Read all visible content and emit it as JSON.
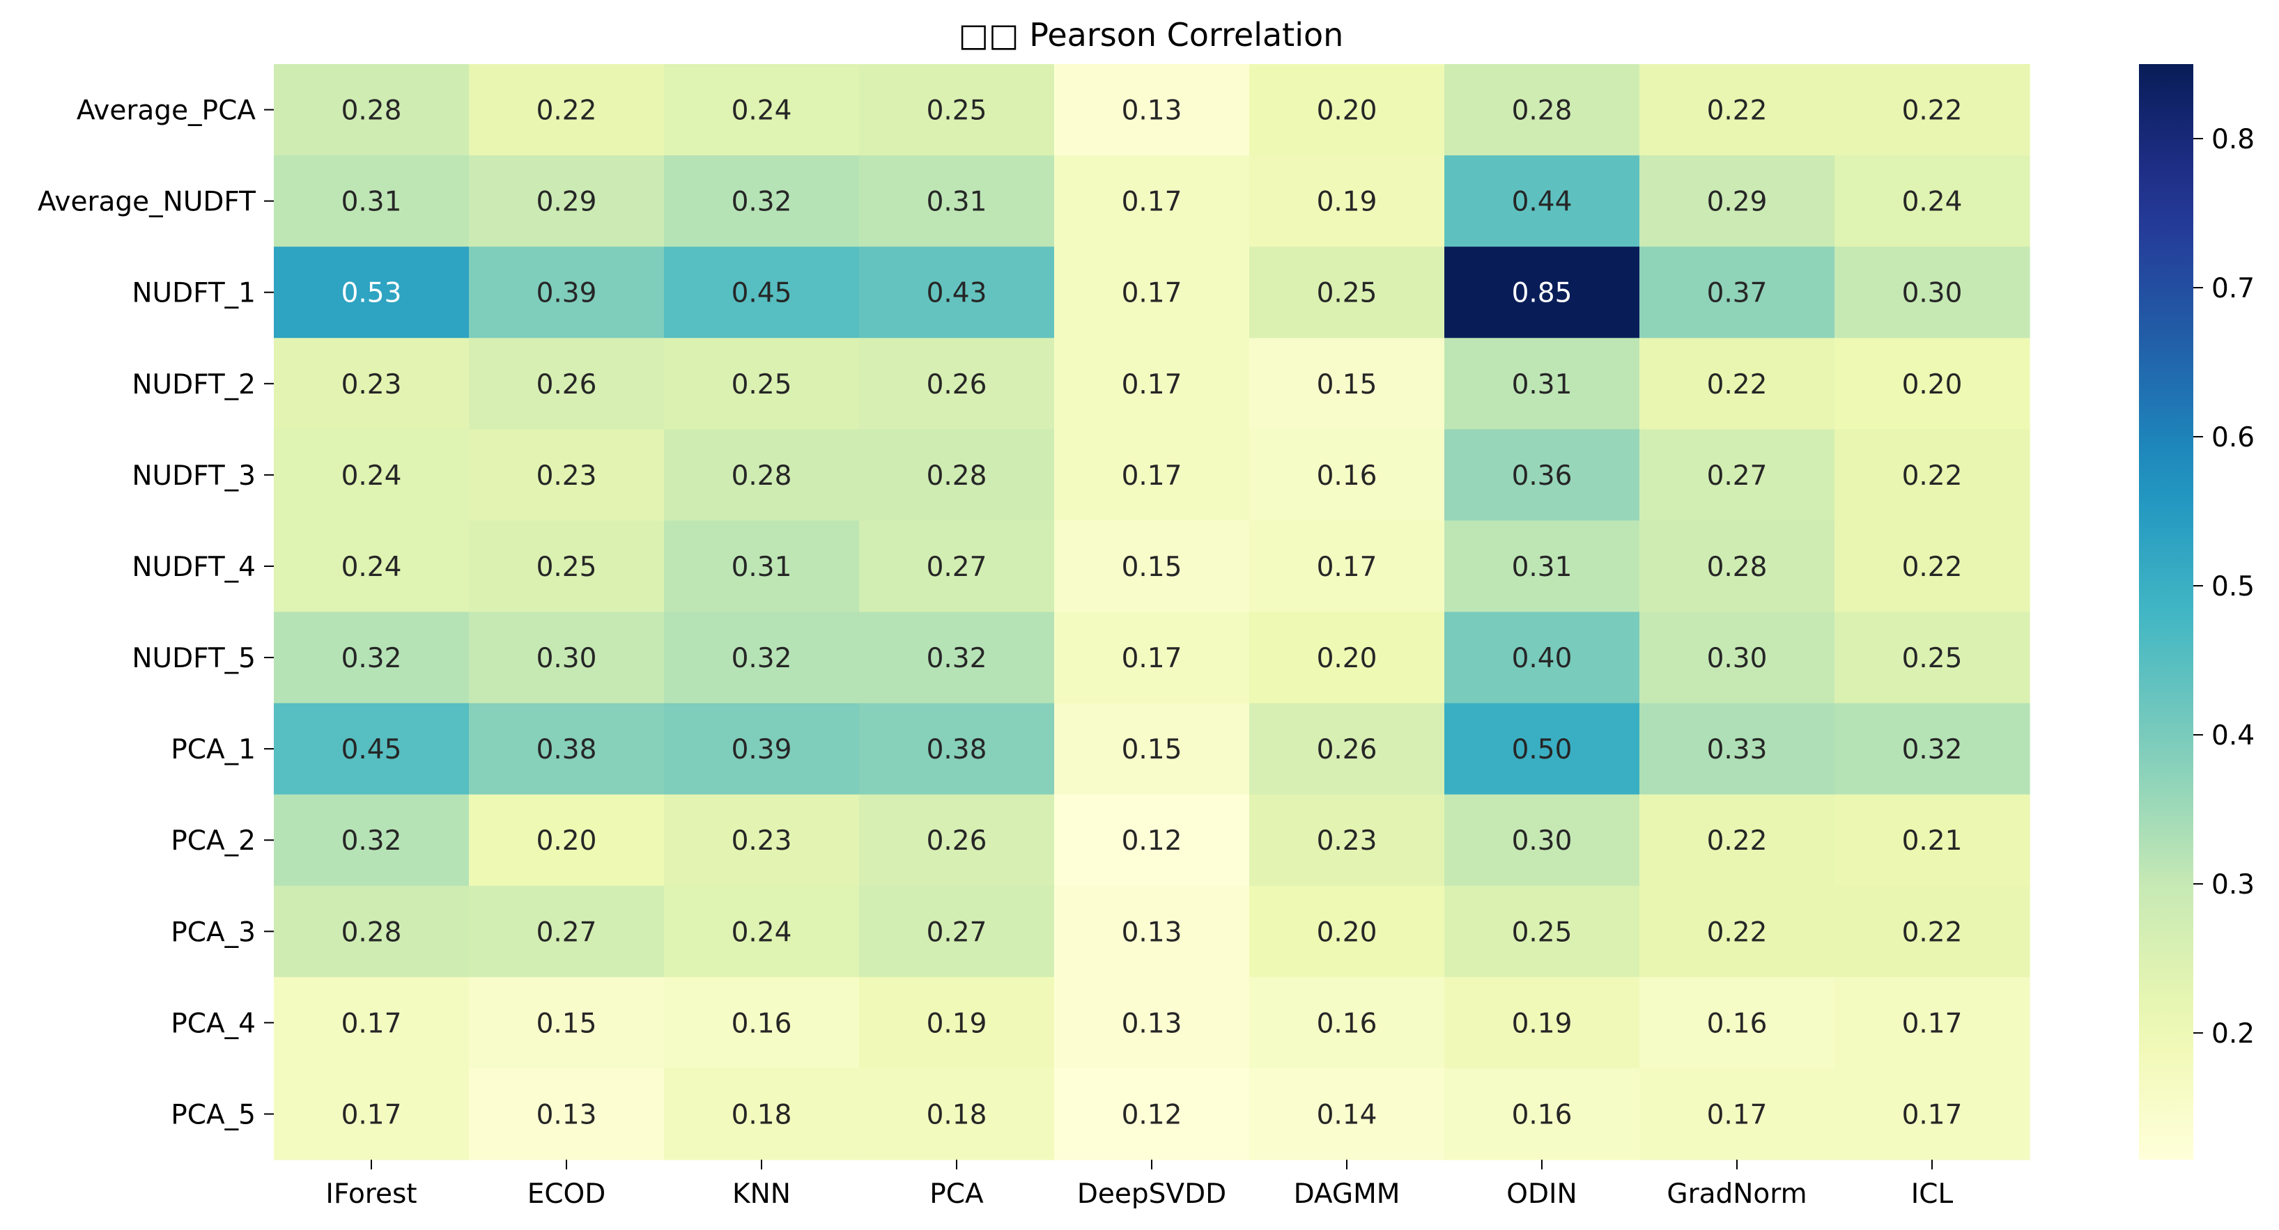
{
  "chart_data": {
    "type": "heatmap",
    "title": "□□ Pearson Correlation",
    "columns": [
      "IForest",
      "ECOD",
      "KNN",
      "PCA",
      "DeepSVDD",
      "DAGMM",
      "ODIN",
      "GradNorm",
      "ICL"
    ],
    "rows": [
      "Average_PCA",
      "Average_NUDFT",
      "NUDFT_1",
      "NUDFT_2",
      "NUDFT_3",
      "NUDFT_4",
      "NUDFT_5",
      "PCA_1",
      "PCA_2",
      "PCA_3",
      "PCA_4",
      "PCA_5"
    ],
    "values": [
      [
        0.28,
        0.22,
        0.24,
        0.25,
        0.13,
        0.2,
        0.28,
        0.22,
        0.22
      ],
      [
        0.31,
        0.29,
        0.32,
        0.31,
        0.17,
        0.19,
        0.44,
        0.29,
        0.24
      ],
      [
        0.53,
        0.39,
        0.45,
        0.43,
        0.17,
        0.25,
        0.85,
        0.37,
        0.3
      ],
      [
        0.23,
        0.26,
        0.25,
        0.26,
        0.17,
        0.15,
        0.31,
        0.22,
        0.2
      ],
      [
        0.24,
        0.23,
        0.28,
        0.28,
        0.17,
        0.16,
        0.36,
        0.27,
        0.22
      ],
      [
        0.24,
        0.25,
        0.31,
        0.27,
        0.15,
        0.17,
        0.31,
        0.28,
        0.22
      ],
      [
        0.32,
        0.3,
        0.32,
        0.32,
        0.17,
        0.2,
        0.4,
        0.3,
        0.25
      ],
      [
        0.45,
        0.38,
        0.39,
        0.38,
        0.15,
        0.26,
        0.5,
        0.33,
        0.32
      ],
      [
        0.32,
        0.2,
        0.23,
        0.26,
        0.12,
        0.23,
        0.3,
        0.22,
        0.21
      ],
      [
        0.28,
        0.27,
        0.24,
        0.27,
        0.13,
        0.2,
        0.25,
        0.22,
        0.22
      ],
      [
        0.17,
        0.15,
        0.16,
        0.19,
        0.13,
        0.16,
        0.19,
        0.16,
        0.17
      ],
      [
        0.17,
        0.13,
        0.18,
        0.18,
        0.12,
        0.14,
        0.16,
        0.17,
        0.17
      ]
    ],
    "colormap": "YlGnBu",
    "vmin": 0.115,
    "vmax": 0.85,
    "colorbar_ticks": [
      0.2,
      0.3,
      0.4,
      0.5,
      0.6,
      0.7,
      0.8
    ],
    "annotation_format": "0.00"
  }
}
